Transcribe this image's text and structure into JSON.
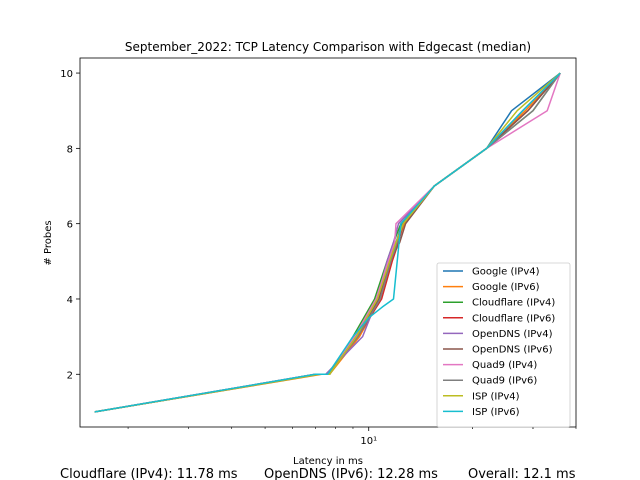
{
  "chart_data": {
    "type": "line",
    "title": "September_2022: TCP Latency Comparison with Edgecast (median)",
    "xlabel": "Latency in ms",
    "ylabel": "# Probes",
    "x_scale": "log",
    "xlim": [
      1.45,
      40
    ],
    "ylim": [
      0.6,
      10.4
    ],
    "x_ticks": [
      {
        "value": 10,
        "label": "10¹"
      }
    ],
    "y_ticks": [
      2,
      4,
      6,
      8,
      10
    ],
    "legend_position": "lower-right",
    "grid": false,
    "series": [
      {
        "name": "Google (IPv4)",
        "color": "#1f77b4",
        "x": [
          1.6,
          7.0,
          7.6,
          9.2,
          10.5,
          11.4,
          12.0,
          12.5,
          15.5,
          22.0,
          26.0,
          36.0
        ],
        "y": [
          1,
          2,
          2,
          3,
          4,
          5,
          5.5,
          6,
          7,
          8,
          9,
          10
        ]
      },
      {
        "name": "Google (IPv6)",
        "color": "#ff7f0e",
        "x": [
          1.6,
          7.3,
          7.7,
          9.4,
          10.8,
          11.6,
          12.1,
          12.7,
          15.5,
          22.0,
          28.5,
          36.0
        ],
        "y": [
          1,
          2,
          2,
          3,
          4,
          5,
          5.5,
          6,
          7,
          8,
          9,
          10
        ]
      },
      {
        "name": "Cloudflare (IPv4)",
        "color": "#2ca02c",
        "x": [
          1.6,
          7.0,
          7.7,
          9.0,
          10.4,
          11.3,
          11.8,
          12.4,
          15.5,
          22.0,
          30.0,
          36.0
        ],
        "y": [
          1,
          2,
          2,
          3,
          4,
          5,
          5.5,
          6,
          7,
          8,
          9,
          10
        ]
      },
      {
        "name": "Cloudflare (IPv6)",
        "color": "#d62728",
        "x": [
          1.6,
          7.1,
          7.6,
          9.3,
          10.9,
          11.7,
          12.2,
          12.6,
          15.5,
          22.0,
          29.0,
          36.0
        ],
        "y": [
          1,
          2,
          2,
          3,
          4,
          5,
          5.5,
          6,
          7,
          8,
          9,
          10
        ]
      },
      {
        "name": "OpenDNS (IPv4)",
        "color": "#9467bd",
        "x": [
          1.6,
          7.0,
          7.5,
          9.6,
          10.6,
          11.3,
          11.8,
          12.2,
          15.5,
          22.0,
          28.0,
          36.0
        ],
        "y": [
          1,
          2,
          2,
          3,
          4,
          5,
          5.5,
          6,
          7,
          8,
          9,
          10
        ]
      },
      {
        "name": "OpenDNS (IPv6)",
        "color": "#8c564b",
        "x": [
          1.6,
          7.2,
          7.7,
          9.2,
          10.7,
          11.5,
          12.3,
          12.8,
          15.5,
          22.0,
          29.0,
          36.0
        ],
        "y": [
          1,
          2,
          2,
          3,
          4,
          5,
          5.5,
          6,
          7,
          8,
          9,
          10
        ]
      },
      {
        "name": "Quad9 (IPv4)",
        "color": "#e377c2",
        "x": [
          1.6,
          7.0,
          7.6,
          9.1,
          10.5,
          11.4,
          11.9,
          12.0,
          15.5,
          22.0,
          33.0,
          36.0
        ],
        "y": [
          1,
          2,
          2,
          3,
          4,
          5,
          5.5,
          6,
          7,
          8,
          9,
          10
        ]
      },
      {
        "name": "Quad9 (IPv6)",
        "color": "#7f7f7f",
        "x": [
          1.6,
          7.1,
          7.6,
          9.3,
          10.8,
          11.6,
          12.1,
          12.6,
          15.5,
          22.0,
          30.0,
          36.0
        ],
        "y": [
          1,
          2,
          2,
          3,
          4,
          5,
          5.5,
          6,
          7,
          8,
          9,
          10
        ]
      },
      {
        "name": "ISP (IPv4)",
        "color": "#bcbd22",
        "x": [
          1.6,
          7.2,
          7.7,
          9.2,
          10.6,
          11.5,
          12.0,
          12.6,
          15.5,
          22.0,
          27.0,
          36.0
        ],
        "y": [
          1,
          2,
          2,
          3,
          4,
          5,
          5.5,
          6,
          7,
          8,
          9,
          10
        ]
      },
      {
        "name": "ISP (IPv6)",
        "color": "#17becf",
        "x": [
          1.6,
          7.0,
          7.6,
          9.0,
          10.0,
          11.0,
          11.8,
          12.4,
          15.5,
          22.0,
          28.0,
          36.0
        ],
        "y": [
          1,
          2,
          2,
          3,
          3.5,
          3.8,
          4.0,
          6,
          7,
          8,
          9,
          10
        ]
      }
    ]
  },
  "footer": {
    "stat1": "Cloudflare (IPv4): 11.78 ms",
    "stat2": "OpenDNS (IPv6): 12.28 ms",
    "stat3": "Overall: 12.1 ms"
  }
}
